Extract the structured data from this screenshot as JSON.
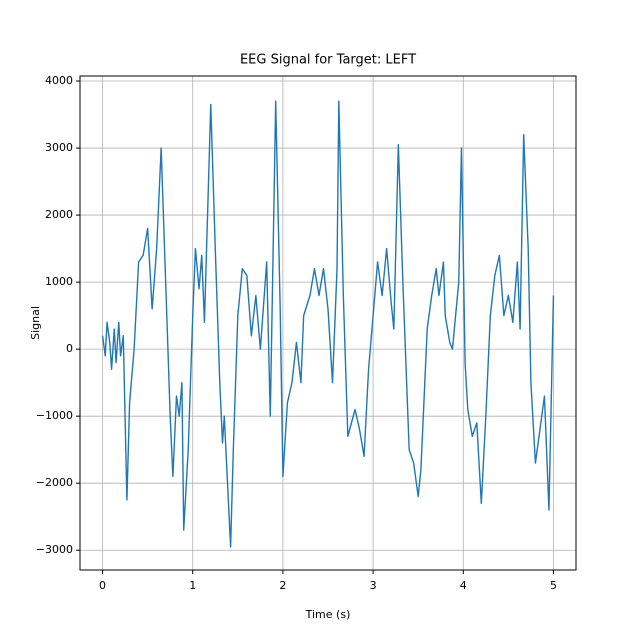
{
  "chart_data": {
    "type": "line",
    "title": "EEG Signal for Target: LEFT",
    "x_label": "Time (s)",
    "y_label": "Signal",
    "x": [
      0,
      0.03,
      0.05,
      0.08,
      0.1,
      0.13,
      0.15,
      0.18,
      0.2,
      0.23,
      0.27,
      0.3,
      0.35,
      0.4,
      0.45,
      0.5,
      0.55,
      0.6,
      0.65,
      0.7,
      0.75,
      0.78,
      0.82,
      0.85,
      0.88,
      0.9,
      0.95,
      1.0,
      1.03,
      1.07,
      1.1,
      1.13,
      1.2,
      1.25,
      1.3,
      1.33,
      1.35,
      1.42,
      1.45,
      1.5,
      1.55,
      1.6,
      1.65,
      1.7,
      1.75,
      1.82,
      1.86,
      1.92,
      1.97,
      2.0,
      2.05,
      2.1,
      2.15,
      2.2,
      2.23,
      2.3,
      2.35,
      2.4,
      2.45,
      2.5,
      2.55,
      2.6,
      2.62,
      2.67,
      2.72,
      2.8,
      2.85,
      2.9,
      2.95,
      3.0,
      3.05,
      3.1,
      3.15,
      3.2,
      3.23,
      3.28,
      3.33,
      3.4,
      3.45,
      3.5,
      3.53,
      3.6,
      3.65,
      3.7,
      3.73,
      3.78,
      3.8,
      3.85,
      3.88,
      3.95,
      3.98,
      4.02,
      4.05,
      4.1,
      4.15,
      4.2,
      4.25,
      4.3,
      4.35,
      4.4,
      4.45,
      4.5,
      4.55,
      4.6,
      4.63,
      4.67,
      4.72,
      4.75,
      4.8,
      4.85,
      4.9,
      4.95,
      5.0
    ],
    "series": [
      {
        "name": "Signal",
        "color": "#1f77b4",
        "values": [
          200,
          -100,
          400,
          100,
          -300,
          300,
          -200,
          400,
          -100,
          200,
          -2250,
          -800,
          0,
          1300,
          1400,
          1800,
          600,
          1500,
          3000,
          1000,
          -1000,
          -1900,
          -700,
          -1000,
          -500,
          -2700,
          -1500,
          500,
          1500,
          900,
          1400,
          400,
          3650,
          1500,
          -500,
          -1400,
          -1000,
          -2950,
          -1500,
          500,
          1200,
          1100,
          200,
          800,
          0,
          1300,
          -1000,
          3700,
          600,
          -1900,
          -800,
          -500,
          100,
          -500,
          500,
          800,
          1200,
          800,
          1200,
          600,
          -500,
          1200,
          3700,
          800,
          -1300,
          -900,
          -1200,
          -1600,
          -300,
          500,
          1300,
          800,
          1500,
          700,
          300,
          3050,
          1000,
          -1500,
          -1700,
          -2200,
          -1800,
          300,
          800,
          1200,
          800,
          1300,
          500,
          100,
          0,
          1000,
          3000,
          -200,
          -900,
          -1300,
          -1100,
          -2300,
          -1000,
          500,
          1100,
          1400,
          500,
          800,
          400,
          1300,
          300,
          3200,
          1500,
          -500,
          -1700,
          -1200,
          -700,
          -2400,
          800
        ]
      }
    ],
    "xlim": [
      -0.25,
      5.25
    ],
    "ylim": [
      -3295,
      4075
    ],
    "xticks": [
      0,
      1,
      2,
      3,
      4,
      5
    ],
    "yticks": [
      {
        "value": -3000,
        "label": "−3000"
      },
      {
        "value": -2000,
        "label": "−2000"
      },
      {
        "value": -1000,
        "label": "−1000"
      },
      0,
      1000,
      2000,
      3000,
      4000
    ],
    "grid": true
  }
}
